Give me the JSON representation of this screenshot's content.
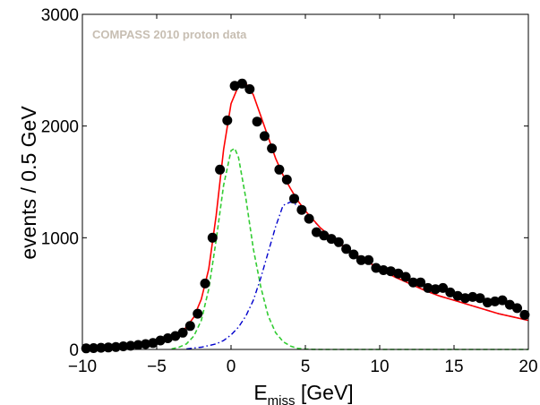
{
  "chart_data": {
    "type": "scatter",
    "title": "",
    "annotation": "COMPASS 2010 proton data",
    "xlabel": {
      "main": "E",
      "sub": "miss",
      "unit": " [GeV]"
    },
    "ylabel": "events / 0.5 GeV",
    "xlim": [
      -10,
      20
    ],
    "ylim": [
      0,
      3000
    ],
    "xticks": [
      -10,
      -5,
      0,
      5,
      10,
      15,
      20
    ],
    "xtick_labels": [
      "−10",
      "−5",
      "0",
      "5",
      "10",
      "15",
      "20"
    ],
    "yticks": [
      0,
      1000,
      2000,
      3000
    ],
    "ytick_labels": [
      "0",
      "1000",
      "2000",
      "3000"
    ],
    "grid": false,
    "legend": "none",
    "colors": {
      "data": "#000000",
      "total_fit": "#ff0000",
      "signal_fit": "#33cc33",
      "background_fit": "#0000cc",
      "annotation": "#c7beb2"
    },
    "series": [
      {
        "kind": "points",
        "x": [
          -9.75,
          -9.25,
          -8.75,
          -8.25,
          -7.75,
          -7.25,
          -6.75,
          -6.25,
          -5.75,
          -5.25,
          -4.75,
          -4.25,
          -3.75,
          -3.25,
          -2.75,
          -2.25,
          -1.75,
          -1.25,
          -0.75,
          -0.25,
          0.25,
          0.75,
          1.25,
          1.75,
          2.25,
          2.75,
          3.25,
          3.75,
          4.25,
          4.75,
          5.25,
          5.75,
          6.25,
          6.75,
          7.25,
          7.75,
          8.25,
          8.75,
          9.25,
          9.75,
          10.25,
          10.75,
          11.25,
          11.75,
          12.25,
          12.75,
          13.25,
          13.75,
          14.25,
          14.75,
          15.25,
          15.75,
          16.25,
          16.75,
          17.25,
          17.75,
          18.25,
          18.75,
          19.25,
          19.75
        ],
        "y": [
          10,
          12,
          15,
          18,
          22,
          28,
          33,
          40,
          48,
          58,
          80,
          100,
          120,
          150,
          210,
          320,
          590,
          1000,
          1610,
          2050,
          2360,
          2380,
          2330,
          2040,
          1910,
          1800,
          1610,
          1520,
          1350,
          1250,
          1170,
          1050,
          1020,
          990,
          960,
          900,
          850,
          800,
          800,
          730,
          710,
          700,
          680,
          650,
          600,
          600,
          550,
          540,
          550,
          510,
          480,
          460,
          470,
          460,
          420,
          430,
          440,
          400,
          370,
          310
        ]
      },
      {
        "kind": "total_fit",
        "x": [
          -10,
          -9,
          -8,
          -7,
          -6,
          -5,
          -4.5,
          -4,
          -3.5,
          -3,
          -2.5,
          -2,
          -1.5,
          -1,
          -0.5,
          0,
          0.5,
          1,
          1.5,
          2,
          2.5,
          3,
          3.5,
          4,
          4.5,
          5,
          6,
          7,
          8,
          9,
          10,
          11,
          12,
          13,
          14,
          15,
          16,
          17,
          18,
          19,
          20
        ],
        "y": [
          5,
          8,
          12,
          20,
          30,
          50,
          70,
          100,
          140,
          200,
          290,
          450,
          720,
          1200,
          1790,
          2200,
          2360,
          2380,
          2280,
          2090,
          1900,
          1710,
          1560,
          1440,
          1330,
          1240,
          1090,
          975,
          880,
          800,
          720,
          650,
          590,
          530,
          480,
          440,
          400,
          360,
          320,
          290,
          260
        ]
      },
      {
        "kind": "signal_fit",
        "x": [
          -4,
          -3.5,
          -3,
          -2.5,
          -2,
          -1.5,
          -1,
          -0.5,
          0,
          0.25,
          0.5,
          1,
          1.5,
          2,
          2.5,
          3,
          3.5,
          4,
          4.5,
          5,
          5.5,
          6,
          7,
          10,
          15,
          20
        ],
        "y": [
          5,
          20,
          50,
          120,
          260,
          540,
          980,
          1470,
          1780,
          1800,
          1720,
          1350,
          900,
          560,
          300,
          150,
          70,
          30,
          10,
          3,
          1,
          0,
          0,
          0,
          0,
          0
        ]
      },
      {
        "kind": "background_fit",
        "x": [
          -3,
          -2,
          -1,
          -0.5,
          0,
          0.5,
          1,
          1.5,
          2,
          2.5,
          3,
          3.5,
          4,
          4.5,
          5,
          6,
          7,
          8,
          9,
          10,
          11,
          12,
          13,
          14,
          15,
          16,
          17,
          18,
          19,
          20
        ],
        "y": [
          5,
          20,
          50,
          80,
          130,
          200,
          300,
          440,
          640,
          870,
          1100,
          1290,
          1320,
          1290,
          1230,
          1090,
          975,
          880,
          800,
          720,
          650,
          590,
          530,
          480,
          440,
          400,
          360,
          320,
          290,
          260
        ]
      }
    ]
  }
}
